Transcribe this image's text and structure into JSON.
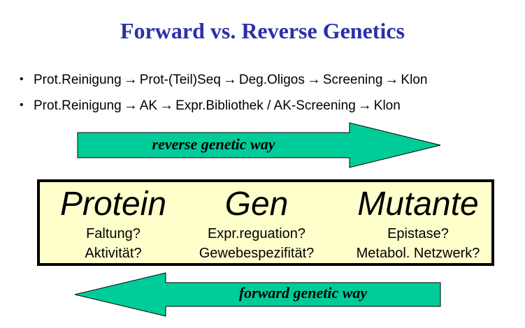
{
  "title": "Forward vs. Reverse Genetics",
  "bullets": [
    {
      "steps": [
        "Prot.Reinigung",
        "Prot-(Teil)Seq",
        "Deg.Oligos",
        "Screening",
        "Klon"
      ]
    },
    {
      "steps": [
        "Prot.Reinigung",
        "AK",
        "Expr.Bibliothek / AK-Screening",
        "Klon"
      ]
    }
  ],
  "arrow_glyph": "→",
  "reverse_arrow": {
    "label": "reverse genetic way",
    "color": "#00cc99"
  },
  "forward_arrow": {
    "label": "forward genetic way",
    "color": "#00cc99"
  },
  "box": {
    "fill": "#ffffcc",
    "columns": [
      {
        "heading": "Protein",
        "q1": "Faltung?",
        "q2": "Aktivität?"
      },
      {
        "heading": "Gen",
        "q1": "Expr.reguation?",
        "q2": "Gewebespezifität?"
      },
      {
        "heading": "Mutante",
        "q1": "Epistase?",
        "q2": "Metabol. Netzwerk?"
      }
    ]
  }
}
